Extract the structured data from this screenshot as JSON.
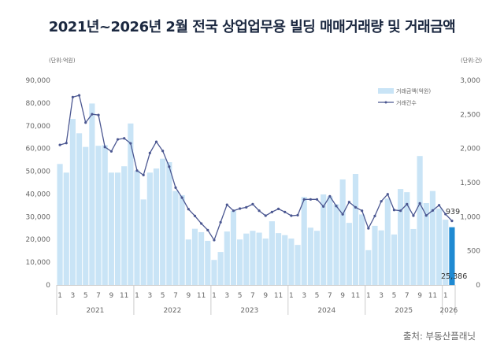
{
  "chart_data": {
    "type": "bar+line",
    "title": "2021년~2026년 2월 전국 상업업무용 빌딩 매매거래량 및 거래금액",
    "y_left_unit": "(단위:억원)",
    "y_right_unit": "(단위:건)",
    "ylim_left": [
      0,
      90000
    ],
    "ylim_right": [
      0,
      3000
    ],
    "y_left_ticks": [
      "0",
      "10,000",
      "20,000",
      "30,000",
      "40,000",
      "50,000",
      "60,000",
      "70,000",
      "80,000",
      "90,000"
    ],
    "y_right_ticks": [
      "0",
      "500",
      "1,000",
      "1,500",
      "2,000",
      "2,500",
      "3,000"
    ],
    "years": [
      "2021",
      "2022",
      "2023",
      "2024",
      "2025",
      "2026"
    ],
    "month_tick_labels": [
      "1",
      "3",
      "5",
      "7",
      "9",
      "11"
    ],
    "legend": "top-right",
    "grid": false,
    "series": [
      {
        "name": "거래금액(억원)",
        "type": "bar",
        "axis": "left",
        "color": "#c9e4f6",
        "highlight_color": "#1f8ad2",
        "values": [
          53200,
          49400,
          73000,
          66700,
          60700,
          79800,
          61200,
          61500,
          49400,
          49400,
          52200,
          71000,
          50300,
          37600,
          49400,
          51200,
          55500,
          54000,
          41300,
          39500,
          20000,
          24700,
          23200,
          19400,
          11000,
          14500,
          23500,
          32600,
          20000,
          22600,
          23800,
          23000,
          20400,
          28000,
          22800,
          21900,
          20400,
          17600,
          38700,
          25200,
          23800,
          39800,
          39000,
          35500,
          46400,
          27300,
          48800,
          31000,
          15300,
          26000,
          24000,
          38000,
          22200,
          42200,
          40800,
          24600,
          56700,
          36000,
          41300,
          33600,
          28700,
          25386
        ]
      },
      {
        "name": "거래건수",
        "type": "line",
        "axis": "right",
        "color": "#4b5791",
        "values": [
          2053,
          2080,
          2753,
          2780,
          2380,
          2503,
          2491,
          2022,
          1958,
          2134,
          2149,
          2076,
          1676,
          1611,
          1934,
          2099,
          1964,
          1734,
          1427,
          1280,
          1111,
          1012,
          900,
          804,
          657,
          919,
          1176,
          1088,
          1119,
          1138,
          1184,
          1088,
          1015,
          1069,
          1115,
          1069,
          1015,
          1023,
          1254,
          1254,
          1254,
          1150,
          1300,
          1157,
          1035,
          1215,
          1138,
          1088,
          830,
          1011,
          1226,
          1330,
          1099,
          1088,
          1184,
          1015,
          1196,
          1018,
          1092,
          1169,
          1038,
          939
        ]
      }
    ],
    "data_labels": {
      "last_bar": "25,386",
      "last_point": "939"
    }
  },
  "source": "출처: 부동산플래닛"
}
